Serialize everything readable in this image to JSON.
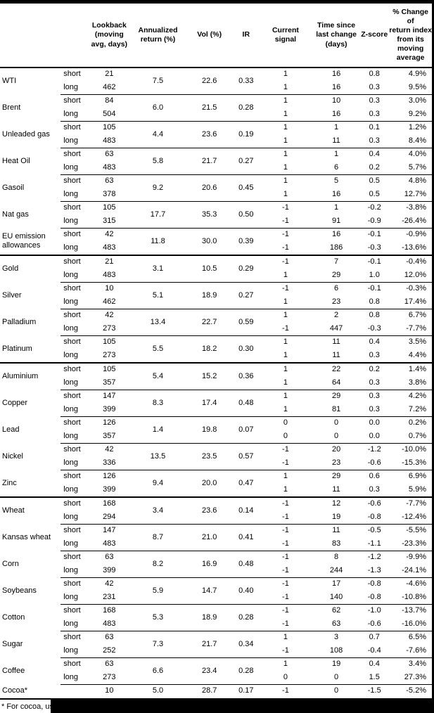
{
  "table": {
    "columns": [
      "",
      "",
      "Lookback\n(moving\navg, days)",
      "Annualized\nreturn (%)",
      "Vol (%)",
      "IR",
      "Current\nsignal",
      "Time since\nlast change\n(days)",
      "Z-score",
      "% Change of\nreturn index\nfrom its\nmoving\naverage"
    ],
    "row_labels": {
      "short": "short",
      "long": "long"
    },
    "commodities": [
      {
        "name": "WTI",
        "ann": "7.5",
        "vol": "22.6",
        "ir": "0.33",
        "short": {
          "lookback": "21",
          "signal": "1",
          "time_since": "16",
          "z_score": "0.8",
          "pct_change": "4.9%"
        },
        "long": {
          "lookback": "462",
          "signal": "1",
          "time_since": "16",
          "z_score": "0.3",
          "pct_change": "9.5%"
        }
      },
      {
        "name": "Brent",
        "ann": "6.0",
        "vol": "21.5",
        "ir": "0.28",
        "short": {
          "lookback": "84",
          "signal": "1",
          "time_since": "10",
          "z_score": "0.3",
          "pct_change": "3.0%"
        },
        "long": {
          "lookback": "504",
          "signal": "1",
          "time_since": "16",
          "z_score": "0.3",
          "pct_change": "9.2%"
        }
      },
      {
        "name": "Unleaded gas",
        "ann": "4.4",
        "vol": "23.6",
        "ir": "0.19",
        "short": {
          "lookback": "105",
          "signal": "1",
          "time_since": "1",
          "z_score": "0.1",
          "pct_change": "1.2%"
        },
        "long": {
          "lookback": "483",
          "signal": "1",
          "time_since": "11",
          "z_score": "0.3",
          "pct_change": "8.4%"
        }
      },
      {
        "name": "Heat Oil",
        "ann": "5.8",
        "vol": "21.7",
        "ir": "0.27",
        "short": {
          "lookback": "63",
          "signal": "1",
          "time_since": "1",
          "z_score": "0.4",
          "pct_change": "4.0%"
        },
        "long": {
          "lookback": "483",
          "signal": "1",
          "time_since": "6",
          "z_score": "0.2",
          "pct_change": "5.7%"
        }
      },
      {
        "name": "Gasoil",
        "ann": "9.2",
        "vol": "20.6",
        "ir": "0.45",
        "short": {
          "lookback": "63",
          "signal": "1",
          "time_since": "5",
          "z_score": "0.5",
          "pct_change": "4.8%"
        },
        "long": {
          "lookback": "378",
          "signal": "1",
          "time_since": "16",
          "z_score": "0.5",
          "pct_change": "12.7%"
        }
      },
      {
        "name": "Nat gas",
        "ann": "17.7",
        "vol": "35.3",
        "ir": "0.50",
        "short": {
          "lookback": "105",
          "signal": "-1",
          "time_since": "1",
          "z_score": "-0.2",
          "pct_change": "-3.8%"
        },
        "long": {
          "lookback": "315",
          "signal": "-1",
          "time_since": "91",
          "z_score": "-0.9",
          "pct_change": "-26.4%"
        }
      },
      {
        "name": "EU emission allowances",
        "ann": "11.8",
        "vol": "30.0",
        "ir": "0.39",
        "short": {
          "lookback": "42",
          "signal": "-1",
          "time_since": "16",
          "z_score": "-0.1",
          "pct_change": "-0.9%"
        },
        "long": {
          "lookback": "483",
          "signal": "-1",
          "time_since": "186",
          "z_score": "-0.3",
          "pct_change": "-13.6%"
        }
      },
      {
        "name": "Gold",
        "section": true,
        "ann": "3.1",
        "vol": "10.5",
        "ir": "0.29",
        "short": {
          "lookback": "21",
          "signal": "-1",
          "time_since": "7",
          "z_score": "-0.1",
          "pct_change": "-0.4%"
        },
        "long": {
          "lookback": "483",
          "signal": "1",
          "time_since": "29",
          "z_score": "1.0",
          "pct_change": "12.0%"
        }
      },
      {
        "name": "Silver",
        "ann": "5.1",
        "vol": "18.9",
        "ir": "0.27",
        "short": {
          "lookback": "10",
          "signal": "-1",
          "time_since": "6",
          "z_score": "-0.1",
          "pct_change": "-0.3%"
        },
        "long": {
          "lookback": "462",
          "signal": "1",
          "time_since": "23",
          "z_score": "0.8",
          "pct_change": "17.4%"
        }
      },
      {
        "name": "Palladium",
        "ann": "13.4",
        "vol": "22.7",
        "ir": "0.59",
        "short": {
          "lookback": "42",
          "signal": "1",
          "time_since": "2",
          "z_score": "0.8",
          "pct_change": "6.7%"
        },
        "long": {
          "lookback": "273",
          "signal": "-1",
          "time_since": "447",
          "z_score": "-0.3",
          "pct_change": "-7.7%"
        }
      },
      {
        "name": "Platinum",
        "ann": "5.5",
        "vol": "18.2",
        "ir": "0.30",
        "short": {
          "lookback": "105",
          "signal": "1",
          "time_since": "11",
          "z_score": "0.4",
          "pct_change": "3.5%"
        },
        "long": {
          "lookback": "273",
          "signal": "1",
          "time_since": "11",
          "z_score": "0.3",
          "pct_change": "4.4%"
        }
      },
      {
        "name": "Aluminium",
        "section": true,
        "ann": "5.4",
        "vol": "15.2",
        "ir": "0.36",
        "short": {
          "lookback": "105",
          "signal": "1",
          "time_since": "22",
          "z_score": "0.2",
          "pct_change": "1.4%"
        },
        "long": {
          "lookback": "357",
          "signal": "1",
          "time_since": "64",
          "z_score": "0.3",
          "pct_change": "3.8%"
        }
      },
      {
        "name": "Copper",
        "ann": "8.3",
        "vol": "17.4",
        "ir": "0.48",
        "short": {
          "lookback": "147",
          "signal": "1",
          "time_since": "29",
          "z_score": "0.3",
          "pct_change": "4.2%"
        },
        "long": {
          "lookback": "399",
          "signal": "1",
          "time_since": "81",
          "z_score": "0.3",
          "pct_change": "7.2%"
        }
      },
      {
        "name": "Lead",
        "ann": "1.4",
        "vol": "19.8",
        "ir": "0.07",
        "short": {
          "lookback": "126",
          "signal": "0",
          "time_since": "0",
          "z_score": "0.0",
          "pct_change": "0.2%"
        },
        "long": {
          "lookback": "357",
          "signal": "0",
          "time_since": "0",
          "z_score": "0.0",
          "pct_change": "0.7%"
        }
      },
      {
        "name": "Nickel",
        "ann": "13.5",
        "vol": "23.5",
        "ir": "0.57",
        "short": {
          "lookback": "42",
          "signal": "-1",
          "time_since": "20",
          "z_score": "-1.2",
          "pct_change": "-10.0%"
        },
        "long": {
          "lookback": "336",
          "signal": "-1",
          "time_since": "23",
          "z_score": "-0.6",
          "pct_change": "-15.3%"
        }
      },
      {
        "name": "Zinc",
        "ann": "9.4",
        "vol": "20.0",
        "ir": "0.47",
        "short": {
          "lookback": "126",
          "signal": "1",
          "time_since": "29",
          "z_score": "0.6",
          "pct_change": "6.9%"
        },
        "long": {
          "lookback": "399",
          "signal": "1",
          "time_since": "11",
          "z_score": "0.3",
          "pct_change": "5.9%"
        }
      },
      {
        "name": "Wheat",
        "section": true,
        "ann": "3.4",
        "vol": "23.6",
        "ir": "0.14",
        "short": {
          "lookback": "168",
          "signal": "-1",
          "time_since": "12",
          "z_score": "-0.6",
          "pct_change": "-7.7%"
        },
        "long": {
          "lookback": "294",
          "signal": "-1",
          "time_since": "19",
          "z_score": "-0.8",
          "pct_change": "-12.4%"
        }
      },
      {
        "name": "Kansas wheat",
        "ann": "8.7",
        "vol": "21.0",
        "ir": "0.41",
        "short": {
          "lookback": "147",
          "signal": "-1",
          "time_since": "11",
          "z_score": "-0.5",
          "pct_change": "-5.5%"
        },
        "long": {
          "lookback": "483",
          "signal": "-1",
          "time_since": "83",
          "z_score": "-1.1",
          "pct_change": "-23.3%"
        }
      },
      {
        "name": "Corn",
        "ann": "8.2",
        "vol": "16.9",
        "ir": "0.48",
        "short": {
          "lookback": "63",
          "signal": "-1",
          "time_since": "8",
          "z_score": "-1.2",
          "pct_change": "-9.9%"
        },
        "long": {
          "lookback": "399",
          "signal": "-1",
          "time_since": "244",
          "z_score": "-1.3",
          "pct_change": "-24.1%"
        }
      },
      {
        "name": "Soybeans",
        "ann": "5.9",
        "vol": "14.7",
        "ir": "0.40",
        "short": {
          "lookback": "42",
          "signal": "-1",
          "time_since": "17",
          "z_score": "-0.8",
          "pct_change": "-4.6%"
        },
        "long": {
          "lookback": "231",
          "signal": "-1",
          "time_since": "140",
          "z_score": "-0.8",
          "pct_change": "-10.8%"
        }
      },
      {
        "name": "Cotton",
        "ann": "5.3",
        "vol": "18.9",
        "ir": "0.28",
        "short": {
          "lookback": "168",
          "signal": "-1",
          "time_since": "62",
          "z_score": "-1.0",
          "pct_change": "-13.7%"
        },
        "long": {
          "lookback": "483",
          "signal": "-1",
          "time_since": "63",
          "z_score": "-0.6",
          "pct_change": "-16.0%"
        }
      },
      {
        "name": "Sugar",
        "ann": "7.3",
        "vol": "21.7",
        "ir": "0.34",
        "short": {
          "lookback": "63",
          "signal": "1",
          "time_since": "3",
          "z_score": "0.7",
          "pct_change": "6.5%"
        },
        "long": {
          "lookback": "252",
          "signal": "-1",
          "time_since": "108",
          "z_score": "-0.4",
          "pct_change": "-7.6%"
        }
      },
      {
        "name": "Coffee",
        "ann": "6.6",
        "vol": "23.4",
        "ir": "0.28",
        "short": {
          "lookback": "63",
          "signal": "1",
          "time_since": "19",
          "z_score": "0.4",
          "pct_change": "3.4%"
        },
        "long": {
          "lookback": "273",
          "signal": "0",
          "time_since": "0",
          "z_score": "1.5",
          "pct_change": "27.3%"
        }
      },
      {
        "name": "Cocoa*",
        "single": true,
        "ann": "5.0",
        "vol": "28.7",
        "ir": "0.17",
        "short": {
          "lookback": "10",
          "signal": "-1",
          "time_since": "0",
          "z_score": "-1.5",
          "pct_change": "-5.2%"
        }
      }
    ]
  },
  "footnote": {
    "visible_text": "* For cocoa, uses c"
  },
  "colors": {
    "text": "#000000",
    "background": "#ffffff",
    "rule": "#000000",
    "redaction_bar": "#000000"
  }
}
